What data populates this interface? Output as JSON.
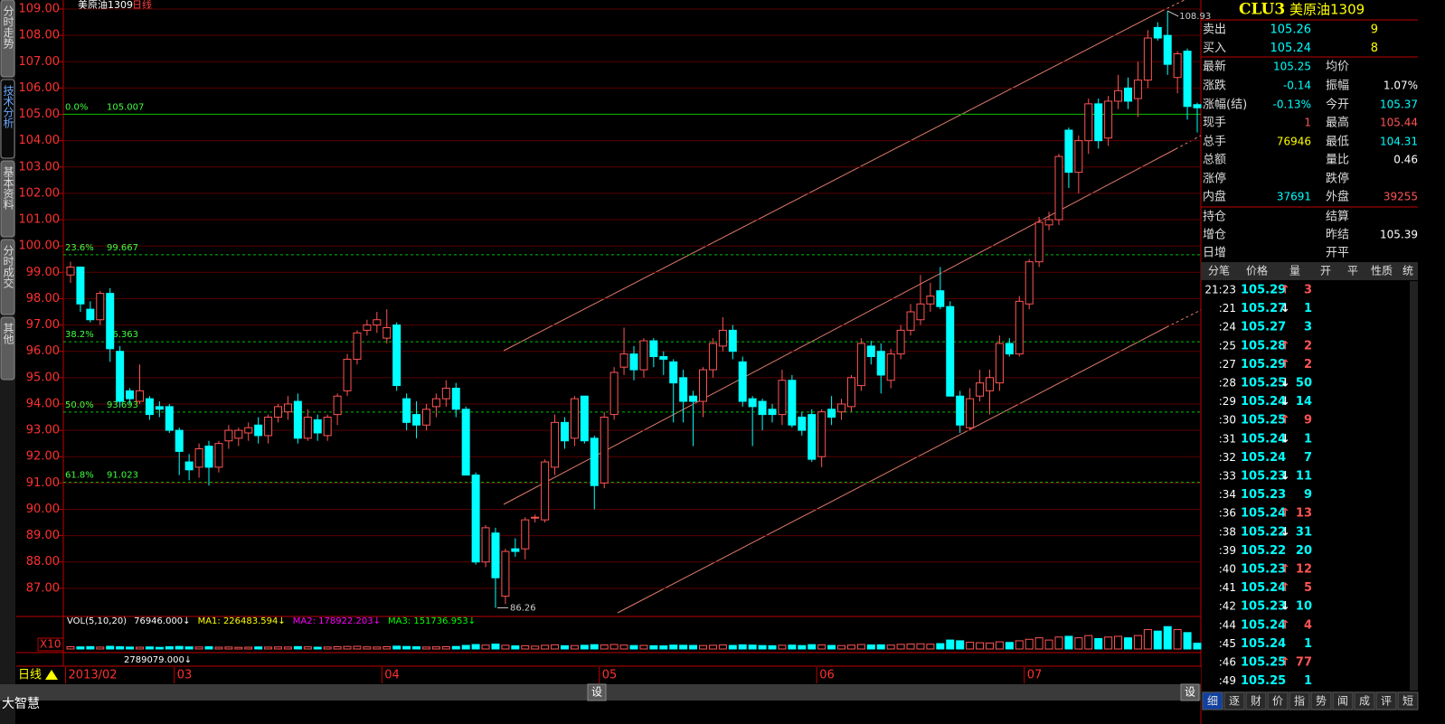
{
  "chart_data": {
    "type": "candlestick",
    "title": "美原油1309",
    "period": "日线",
    "period_label": "日线",
    "up_color": "#ff5454",
    "down_color": "#00ffff",
    "ylim": [
      86,
      109
    ],
    "yticks": [
      {
        "value": 109,
        "label": "109.00"
      },
      {
        "value": 108,
        "label": "108.00"
      },
      {
        "value": 107,
        "label": "107.00"
      },
      {
        "value": 106,
        "label": "106.00"
      },
      {
        "value": 105,
        "label": "105.00"
      },
      {
        "value": 104,
        "label": "104.00"
      },
      {
        "value": 103,
        "label": "103.00"
      },
      {
        "value": 102,
        "label": "102.00"
      },
      {
        "value": 101,
        "label": "101.00"
      },
      {
        "value": 100,
        "label": "100.00"
      },
      {
        "value": 99,
        "label": "99.00"
      },
      {
        "value": 98,
        "label": "98.00"
      },
      {
        "value": 97,
        "label": "97.00"
      },
      {
        "value": 96,
        "label": "96.00"
      },
      {
        "value": 95,
        "label": "95.00"
      },
      {
        "value": 94,
        "label": "94.00"
      },
      {
        "value": 93,
        "label": "93.00"
      },
      {
        "value": 92,
        "label": "92.00"
      },
      {
        "value": 91,
        "label": "91.00"
      },
      {
        "value": 90,
        "label": "90.00"
      },
      {
        "value": 89,
        "label": "89.00"
      },
      {
        "value": 88,
        "label": "88.00"
      },
      {
        "value": 87,
        "label": "87.00"
      }
    ],
    "xticks": [
      {
        "value": 0,
        "label": "2013/02"
      },
      {
        "value": 11,
        "label": "03"
      },
      {
        "value": 32,
        "label": "04"
      },
      {
        "value": 54,
        "label": "05"
      },
      {
        "value": 76,
        "label": "06"
      },
      {
        "value": 97,
        "label": "07"
      }
    ],
    "fib_levels": [
      {
        "label": "0.0%",
        "value": 105.007
      },
      {
        "label": "23.6%",
        "value": 99.667
      },
      {
        "label": "38.2%",
        "value": 96.363
      },
      {
        "label": "50.0%",
        "value": 93.693
      },
      {
        "label": "61.8%",
        "value": 91.023
      }
    ],
    "candles": [
      [
        98.9,
        99.4,
        98.6,
        99.2
      ],
      [
        99.2,
        99.2,
        97.5,
        97.8
      ],
      [
        97.6,
        97.9,
        97.1,
        97.2
      ],
      [
        97.2,
        98.3,
        97.0,
        98.2
      ],
      [
        98.2,
        98.4,
        95.6,
        96.1
      ],
      [
        96.0,
        96.2,
        93.9,
        94.1
      ],
      [
        94.5,
        94.6,
        94.0,
        94.2
      ],
      [
        94.1,
        95.5,
        94.0,
        94.5
      ],
      [
        94.2,
        94.3,
        93.4,
        93.6
      ],
      [
        93.9,
        94.1,
        93.5,
        93.8
      ],
      [
        93.9,
        94.0,
        92.9,
        93.0
      ],
      [
        93.0,
        93.1,
        91.3,
        92.2
      ],
      [
        91.8,
        92.1,
        91.1,
        91.5
      ],
      [
        91.6,
        92.5,
        91.2,
        92.3
      ],
      [
        92.4,
        92.6,
        90.9,
        91.6
      ],
      [
        91.6,
        92.6,
        91.4,
        92.5
      ],
      [
        92.6,
        93.2,
        92.3,
        93.0
      ],
      [
        92.7,
        93.1,
        92.4,
        93.0
      ],
      [
        92.9,
        93.3,
        92.6,
        93.1
      ],
      [
        93.2,
        93.5,
        92.5,
        92.8
      ],
      [
        92.8,
        93.6,
        92.5,
        93.5
      ],
      [
        93.5,
        94.0,
        93.3,
        93.9
      ],
      [
        93.7,
        94.3,
        93.4,
        94.0
      ],
      [
        94.1,
        94.4,
        92.5,
        92.7
      ],
      [
        92.7,
        93.8,
        92.6,
        93.5
      ],
      [
        93.4,
        93.6,
        92.6,
        92.9
      ],
      [
        92.8,
        93.6,
        92.6,
        93.5
      ],
      [
        93.6,
        94.4,
        93.2,
        94.3
      ],
      [
        94.5,
        95.9,
        94.3,
        95.7
      ],
      [
        95.7,
        96.8,
        95.5,
        96.7
      ],
      [
        96.8,
        97.2,
        96.6,
        97.0
      ],
      [
        97.0,
        97.5,
        96.7,
        97.2
      ],
      [
        96.5,
        97.6,
        96.3,
        96.9
      ],
      [
        97.0,
        97.1,
        94.5,
        94.7
      ],
      [
        94.2,
        94.4,
        93.0,
        93.3
      ],
      [
        93.6,
        94.1,
        92.7,
        93.2
      ],
      [
        93.2,
        94.0,
        93.0,
        93.8
      ],
      [
        93.9,
        94.4,
        93.5,
        94.2
      ],
      [
        94.2,
        94.9,
        93.9,
        94.6
      ],
      [
        94.6,
        94.8,
        93.5,
        93.8
      ],
      [
        93.8,
        93.9,
        91.3,
        91.3
      ],
      [
        91.3,
        91.4,
        87.9,
        88.0
      ],
      [
        88.0,
        89.4,
        87.8,
        89.3
      ],
      [
        89.1,
        89.3,
        86.26,
        87.4
      ],
      [
        86.7,
        88.5,
        86.4,
        88.4
      ],
      [
        88.5,
        88.9,
        88.2,
        88.4
      ],
      [
        88.5,
        89.7,
        88.1,
        89.6
      ],
      [
        89.7,
        89.8,
        89.5,
        89.7
      ],
      [
        89.6,
        91.9,
        89.5,
        91.8
      ],
      [
        91.6,
        93.6,
        91.3,
        93.3
      ],
      [
        93.3,
        93.5,
        92.3,
        92.6
      ],
      [
        92.7,
        94.3,
        92.4,
        94.2
      ],
      [
        94.3,
        94.3,
        92.5,
        92.6
      ],
      [
        92.7,
        92.8,
        90.0,
        90.9
      ],
      [
        91.0,
        93.7,
        90.8,
        93.5
      ],
      [
        93.6,
        95.4,
        93.4,
        95.2
      ],
      [
        95.4,
        96.9,
        95.1,
        95.9
      ],
      [
        95.9,
        96.2,
        94.9,
        95.3
      ],
      [
        95.3,
        96.5,
        95.0,
        96.4
      ],
      [
        96.4,
        96.5,
        95.4,
        95.8
      ],
      [
        95.8,
        96.0,
        95.1,
        95.7
      ],
      [
        95.6,
        95.7,
        93.3,
        94.8
      ],
      [
        95.0,
        95.3,
        93.3,
        94.1
      ],
      [
        94.3,
        94.5,
        92.4,
        94.1
      ],
      [
        94.1,
        95.4,
        93.5,
        95.3
      ],
      [
        95.3,
        96.5,
        95.0,
        96.3
      ],
      [
        96.2,
        97.3,
        96.0,
        96.8
      ],
      [
        96.8,
        97.0,
        95.7,
        96.0
      ],
      [
        95.6,
        95.8,
        93.9,
        94.1
      ],
      [
        94.2,
        94.3,
        92.4,
        93.9
      ],
      [
        94.1,
        94.2,
        93.0,
        93.6
      ],
      [
        93.8,
        94.0,
        93.3,
        93.6
      ],
      [
        93.6,
        95.3,
        93.2,
        94.9
      ],
      [
        94.9,
        95.1,
        93.1,
        93.2
      ],
      [
        93.5,
        93.7,
        92.8,
        93.0
      ],
      [
        93.6,
        93.8,
        91.8,
        91.9
      ],
      [
        92.0,
        93.8,
        91.6,
        93.7
      ],
      [
        93.8,
        94.3,
        93.2,
        93.5
      ],
      [
        93.7,
        94.2,
        93.4,
        94.0
      ],
      [
        93.9,
        95.1,
        93.7,
        95.0
      ],
      [
        94.7,
        96.5,
        94.5,
        96.3
      ],
      [
        96.2,
        96.4,
        95.5,
        95.8
      ],
      [
        96.0,
        96.3,
        94.4,
        95.1
      ],
      [
        94.9,
        96.1,
        94.6,
        95.9
      ],
      [
        95.9,
        97.0,
        95.7,
        96.8
      ],
      [
        96.8,
        97.8,
        96.6,
        97.5
      ],
      [
        97.2,
        98.9,
        97.0,
        97.8
      ],
      [
        97.8,
        98.6,
        97.5,
        98.1
      ],
      [
        98.3,
        99.2,
        97.6,
        97.7
      ],
      [
        97.7,
        97.9,
        94.3,
        94.3
      ],
      [
        94.3,
        94.5,
        92.9,
        93.2
      ],
      [
        93.1,
        94.6,
        93.0,
        94.2
      ],
      [
        94.3,
        95.3,
        94.1,
        94.8
      ],
      [
        94.5,
        95.3,
        93.6,
        95.0
      ],
      [
        94.8,
        96.6,
        94.5,
        96.3
      ],
      [
        96.3,
        96.5,
        95.8,
        95.9
      ],
      [
        95.9,
        98.1,
        95.8,
        97.9
      ],
      [
        97.8,
        99.5,
        97.6,
        99.4
      ],
      [
        99.4,
        101.1,
        99.2,
        100.9
      ],
      [
        100.8,
        101.3,
        100.6,
        101.0
      ],
      [
        101.0,
        103.5,
        100.8,
        103.4
      ],
      [
        104.4,
        104.5,
        102.2,
        102.8
      ],
      [
        102.8,
        104.2,
        102.0,
        104.0
      ],
      [
        104.0,
        105.6,
        103.5,
        105.4
      ],
      [
        105.4,
        105.6,
        103.7,
        104.0
      ],
      [
        104.1,
        105.7,
        103.8,
        105.5
      ],
      [
        105.5,
        106.5,
        105.2,
        105.9
      ],
      [
        106.0,
        106.4,
        105.2,
        105.5
      ],
      [
        105.6,
        107.0,
        104.9,
        106.3
      ],
      [
        106.3,
        108.2,
        106.0,
        107.9
      ],
      [
        108.3,
        108.5,
        107.8,
        107.9
      ],
      [
        108.0,
        108.93,
        106.5,
        106.9
      ],
      [
        106.4,
        107.4,
        105.8,
        107.3
      ],
      [
        107.4,
        107.5,
        104.8,
        105.3
      ],
      [
        105.37,
        105.44,
        104.31,
        105.25
      ]
    ],
    "volumes": [
      30000,
      28000,
      32000,
      25000,
      36000,
      30000,
      26000,
      24000,
      28000,
      22000,
      30000,
      34000,
      28000,
      26000,
      30000,
      24000,
      26000,
      22000,
      24000,
      28000,
      25000,
      27000,
      26000,
      32000,
      28000,
      24000,
      26000,
      30000,
      34000,
      36000,
      28000,
      26000,
      30000,
      38000,
      34000,
      30000,
      26000,
      28000,
      30000,
      34000,
      48000,
      60000,
      52000,
      66000,
      50000,
      42000,
      44000,
      38000,
      50000,
      56000,
      44000,
      46000,
      50000,
      58000,
      54000,
      60000,
      52000,
      46000,
      48000,
      44000,
      42000,
      52000,
      50000,
      48000,
      46000,
      50000,
      54000,
      48000,
      56000,
      52000,
      46000,
      44000,
      50000,
      52000,
      46000,
      58000,
      54000,
      48000,
      46000,
      52000,
      60000,
      54000,
      56000,
      52000,
      62000,
      66000,
      70000,
      64000,
      72000,
      120000,
      110000,
      90000,
      84000,
      80000,
      96000,
      88000,
      110000,
      130000,
      150000,
      120000,
      160000,
      170000,
      150000,
      180000,
      140000,
      160000,
      170000,
      150000,
      180000,
      260000,
      240000,
      300000,
      260000,
      220000,
      76946
    ],
    "vol_ylim": [
      0,
      400000
    ],
    "vol_scale_label": "X10",
    "vol_legend": [
      {
        "text": "VOL(5,10,20)",
        "color": "#ffffff"
      },
      {
        "text": "76946.000↓",
        "color": "#ffffff"
      },
      {
        "text": "MA1: 226483.594↓",
        "color": "#ffff00"
      },
      {
        "text": "MA2: 178922.203↓",
        "color": "#ff00ff"
      },
      {
        "text": "MA3: 151736.953↓",
        "color": "#00ff00"
      }
    ],
    "vol_bottom_label": "2789079.000↓"
  },
  "window": {
    "sidebar_tabs": [
      "分时走势",
      "技术分析",
      "基本资料",
      "分时成交",
      "其他"
    ],
    "settings_button": "设",
    "app_name": "大智慧"
  },
  "quote": {
    "code": "CLU3",
    "name": "美原油1309",
    "book": [
      {
        "label": "卖出",
        "price": "105.26",
        "qty": "9"
      },
      {
        "label": "买入",
        "price": "105.24",
        "qty": "8"
      }
    ],
    "rows": [
      [
        {
          "label": "最新",
          "value": "105.25",
          "color": "#00ffff"
        },
        {
          "label": "均价"
        }
      ],
      [
        {
          "label": "涨跌",
          "value": "-0.14",
          "color": "#00ffff"
        },
        {
          "label": "振幅",
          "value": "1.07%",
          "color": "#ffffff"
        }
      ],
      [
        {
          "label": "涨幅(结)",
          "value": "-0.13%",
          "color": "#00ffff"
        },
        {
          "label": "今开",
          "value": "105.37",
          "color": "#00ffff"
        }
      ],
      [
        {
          "label": "现手",
          "value": "1",
          "color": "#ff5454"
        },
        {
          "label": "最高",
          "value": "105.44",
          "color": "#ff5454"
        }
      ],
      [
        {
          "label": "总手",
          "value": "76946",
          "color": "#ffff00"
        },
        {
          "label": "最低",
          "value": "104.31",
          "color": "#00ffff"
        }
      ],
      [
        {
          "label": "总额"
        },
        {
          "label": "量比",
          "value": "0.46",
          "color": "#ffffff"
        }
      ],
      [
        {
          "label": "涨停"
        },
        {
          "label": "跌停"
        }
      ],
      [
        {
          "label": "内盘",
          "value": "37691",
          "color": "#00ffff"
        },
        {
          "label": "外盘",
          "value": "39255",
          "color": "#ff5454"
        }
      ],
      [
        {
          "label": "持仓"
        },
        {
          "label": "结算"
        }
      ],
      [
        {
          "label": "增仓"
        },
        {
          "label": "昨结",
          "value": "105.39",
          "color": "#ffffff"
        }
      ],
      [
        {
          "label": "日增"
        },
        {
          "label": "开平"
        }
      ]
    ],
    "trade_headers": [
      "分笔",
      "价格",
      "量",
      "开",
      "平",
      "性质",
      "统"
    ],
    "trades": [
      {
        "time": "21:23",
        "price": "105.29",
        "dir": "↑",
        "vol": "3"
      },
      {
        "time": ":21",
        "price": "105.27",
        "dir": "↓",
        "vol": "1"
      },
      {
        "time": ":24",
        "price": "105.27",
        "vol": "3"
      },
      {
        "time": ":25",
        "price": "105.28",
        "dir": "↑",
        "vol": "2"
      },
      {
        "time": ":27",
        "price": "105.29",
        "dir": "↑",
        "vol": "2"
      },
      {
        "time": ":28",
        "price": "105.25",
        "dir": "↓",
        "vol": "50"
      },
      {
        "time": ":29",
        "price": "105.24",
        "dir": "↓",
        "vol": "14"
      },
      {
        "time": ":30",
        "price": "105.25",
        "dir": "↑",
        "vol": "9"
      },
      {
        "time": ":31",
        "price": "105.24",
        "dir": "↓",
        "vol": "1"
      },
      {
        "time": ":32",
        "price": "105.24",
        "vol": "7"
      },
      {
        "time": ":33",
        "price": "105.23",
        "dir": "↓",
        "vol": "11"
      },
      {
        "time": ":34",
        "price": "105.23",
        "vol": "9"
      },
      {
        "time": ":36",
        "price": "105.24",
        "dir": "↑",
        "vol": "13"
      },
      {
        "time": ":38",
        "price": "105.22",
        "dir": "↓",
        "vol": "31"
      },
      {
        "time": ":39",
        "price": "105.22",
        "vol": "20"
      },
      {
        "time": ":40",
        "price": "105.23",
        "dir": "↑",
        "vol": "12"
      },
      {
        "time": ":41",
        "price": "105.24",
        "dir": "↑",
        "vol": "5"
      },
      {
        "time": ":42",
        "price": "105.23",
        "dir": "↓",
        "vol": "10"
      },
      {
        "time": ":44",
        "price": "105.24",
        "dir": "↑",
        "vol": "4"
      },
      {
        "time": ":45",
        "price": "105.24",
        "vol": "1"
      },
      {
        "time": ":46",
        "price": "105.25",
        "dir": "↑",
        "vol": "77"
      },
      {
        "time": ":49",
        "price": "105.25",
        "vol": "1"
      }
    ],
    "tabs": [
      "细",
      "逐",
      "财",
      "价",
      "指",
      "势",
      "闻",
      "成",
      "评",
      "短"
    ]
  }
}
